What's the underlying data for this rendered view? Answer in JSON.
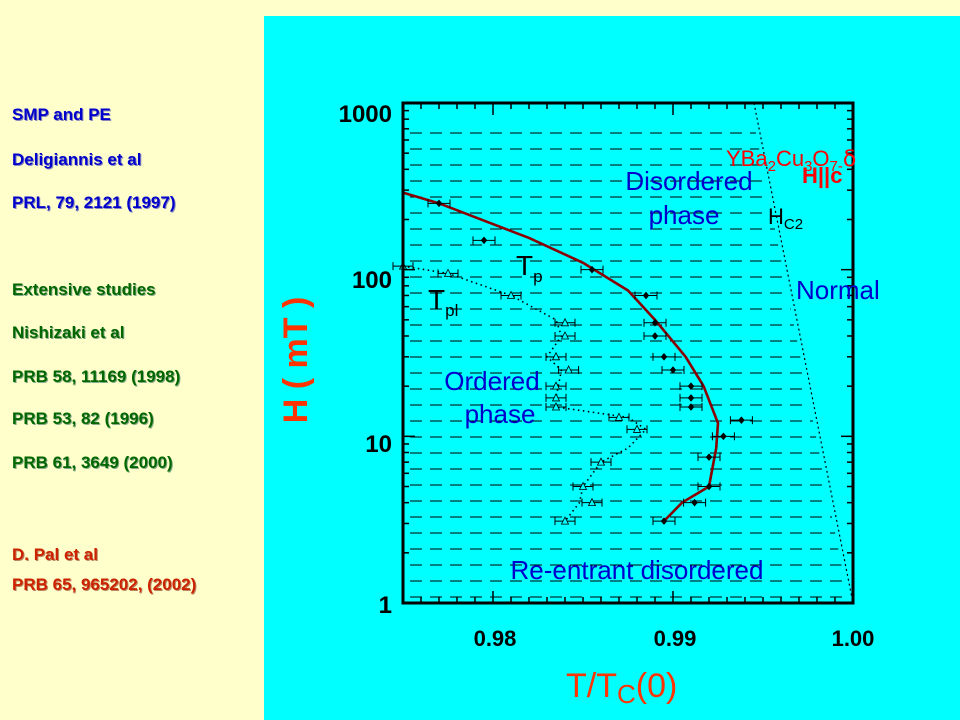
{
  "references": {
    "smp_title": "SMP and PE",
    "deligiannis_authors": "Deligiannis et al",
    "deligiannis_ref": "PRL, 79, 2121 (1997)",
    "extensive": "Extensive studies",
    "nishizaki_authors": "Nishizaki et al",
    "nishizaki_ref1": "PRB 58, 11169 (1998)",
    "nishizaki_ref2": "PRB 53, 82 (1996)",
    "nishizaki_ref3": "PRB 61, 3649 (2000)",
    "pal_authors": "D. Pal et al",
    "pal_ref": "PRB 65, 965202, (2002)"
  },
  "colors": {
    "left_bg": "#ffffcc",
    "plot_bg": "#00ffff",
    "tp_line": "#8b0000",
    "phase_label": "#0000cc",
    "axis_label": "#ff3300",
    "compound": "#ff0000"
  },
  "chart_data": {
    "type": "scatter",
    "xlabel_main": "T/T",
    "xlabel_sub": "C",
    "xlabel_tail": "(0)",
    "ylabel": "H ( mT )",
    "y_scale": "log",
    "xlim": [
      0.975,
      1.0
    ],
    "ylim": [
      1,
      1000
    ],
    "x_ticks": [
      "0.98",
      "0.99",
      "1.00"
    ],
    "y_ticks": [
      "1",
      "10",
      "100",
      "1000"
    ],
    "annotations": {
      "compound_main": "YBa",
      "compound_sub1": "2",
      "compound_mid": "Cu",
      "compound_sub2": "3",
      "compound_o": "O",
      "compound_sub3": "7-",
      "compound_delta": "δ",
      "field_dir": "H||c",
      "hc2_main": "H",
      "hc2_sub": "C2",
      "disordered_line1": "Disordered",
      "disordered_line2": "phase",
      "normal": "Normal",
      "ordered_line1": "Ordered",
      "ordered_line2": "phase",
      "reentrant": "Re-entrant disordered",
      "tp_main": "T",
      "tp_sub": "p",
      "tpl_main": "T",
      "tpl_sub": "pl"
    },
    "series": [
      {
        "name": "Tp",
        "style": "solid line with filled diamonds",
        "line": [
          [
            0.975,
            290
          ],
          [
            0.977,
            250
          ],
          [
            0.982,
            155
          ],
          [
            0.985,
            110
          ],
          [
            0.9875,
            75
          ],
          [
            0.989,
            50
          ],
          [
            0.9907,
            30
          ],
          [
            0.9917,
            20
          ],
          [
            0.9925,
            12
          ],
          [
            0.9924,
            8.5
          ],
          [
            0.992,
            5
          ],
          [
            0.9905,
            4
          ],
          [
            0.9895,
            3.1
          ]
        ],
        "points": [
          [
            0.977,
            250
          ],
          [
            0.9795,
            150
          ],
          [
            0.9855,
            100
          ],
          [
            0.9885,
            70
          ],
          [
            0.989,
            48
          ],
          [
            0.989,
            40
          ],
          [
            0.9895,
            30
          ],
          [
            0.99,
            25
          ],
          [
            0.991,
            20
          ],
          [
            0.991,
            17
          ],
          [
            0.991,
            15
          ],
          [
            0.9938,
            12.5
          ],
          [
            0.9928,
            10
          ],
          [
            0.992,
            7.5
          ],
          [
            0.992,
            5
          ],
          [
            0.9912,
            4
          ],
          [
            0.9895,
            3.1
          ]
        ]
      },
      {
        "name": "Tpl",
        "style": "dotted line with open triangles",
        "line": [
          [
            0.975,
            105
          ],
          [
            0.9775,
            95
          ],
          [
            0.981,
            70
          ],
          [
            0.9835,
            50
          ],
          [
            0.9838,
            40
          ],
          [
            0.983,
            30
          ],
          [
            0.9838,
            25
          ],
          [
            0.9835,
            17
          ],
          [
            0.9835,
            15
          ],
          [
            0.9875,
            13
          ],
          [
            0.9885,
            11
          ],
          [
            0.9875,
            8.5
          ],
          [
            0.986,
            7
          ],
          [
            0.985,
            5
          ],
          [
            0.9848,
            4
          ],
          [
            0.984,
            3.1
          ]
        ],
        "points": [
          [
            0.975,
            105
          ],
          [
            0.9775,
            95
          ],
          [
            0.981,
            70
          ],
          [
            0.984,
            48
          ],
          [
            0.984,
            40
          ],
          [
            0.9835,
            30
          ],
          [
            0.9842,
            25
          ],
          [
            0.9835,
            20
          ],
          [
            0.9835,
            17
          ],
          [
            0.9835,
            15
          ],
          [
            0.987,
            13
          ],
          [
            0.988,
            11
          ],
          [
            0.986,
            7
          ],
          [
            0.985,
            5
          ],
          [
            0.9855,
            4
          ],
          [
            0.984,
            3.1
          ]
        ]
      },
      {
        "name": "Hc2",
        "style": "thin dotted line",
        "line": [
          [
            0.9945,
            1000
          ],
          [
            1.0,
            1
          ]
        ]
      }
    ]
  }
}
